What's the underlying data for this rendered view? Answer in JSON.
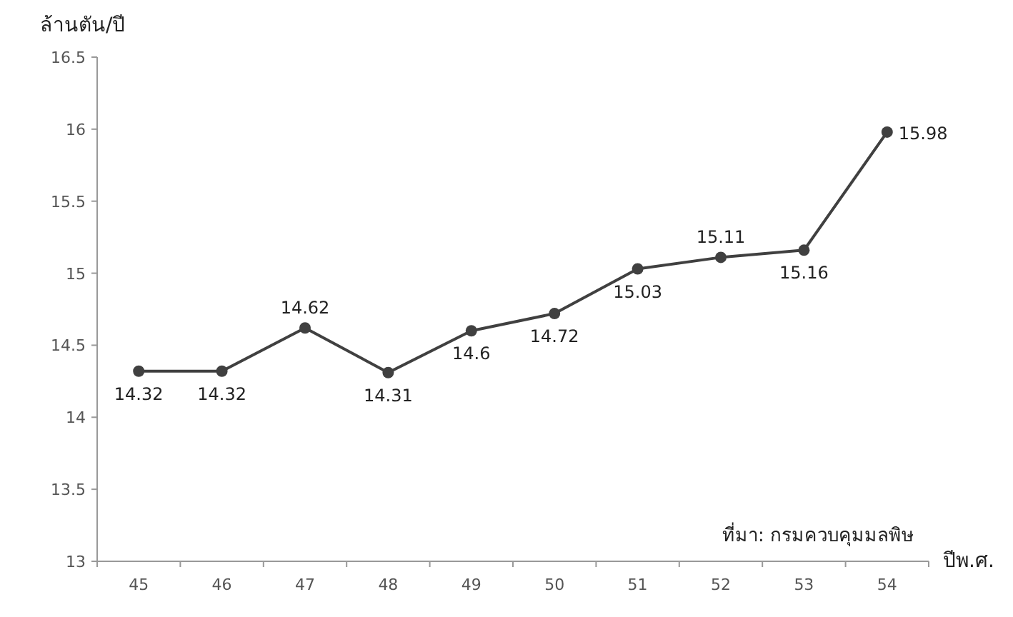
{
  "chart_data": {
    "type": "line",
    "ylabel": "ล้านตัน/ปี",
    "xlabel": "ปีพ.ศ.",
    "categories": [
      "45",
      "46",
      "47",
      "48",
      "49",
      "50",
      "51",
      "52",
      "53",
      "54"
    ],
    "series": [
      {
        "color": "#404040",
        "values": [
          14.32,
          14.32,
          14.62,
          14.31,
          14.6,
          14.72,
          15.03,
          15.11,
          15.16,
          15.98
        ]
      }
    ],
    "ylim": [
      13,
      16.5
    ],
    "yticks": [
      13,
      13.5,
      14,
      14.5,
      15,
      15.5,
      16,
      16.5
    ],
    "grid": false,
    "marker": "circle",
    "line_style": "solid",
    "data_labels": true,
    "annotations": [
      "ที่มา: กรมควบคุมมลพิษ"
    ]
  }
}
